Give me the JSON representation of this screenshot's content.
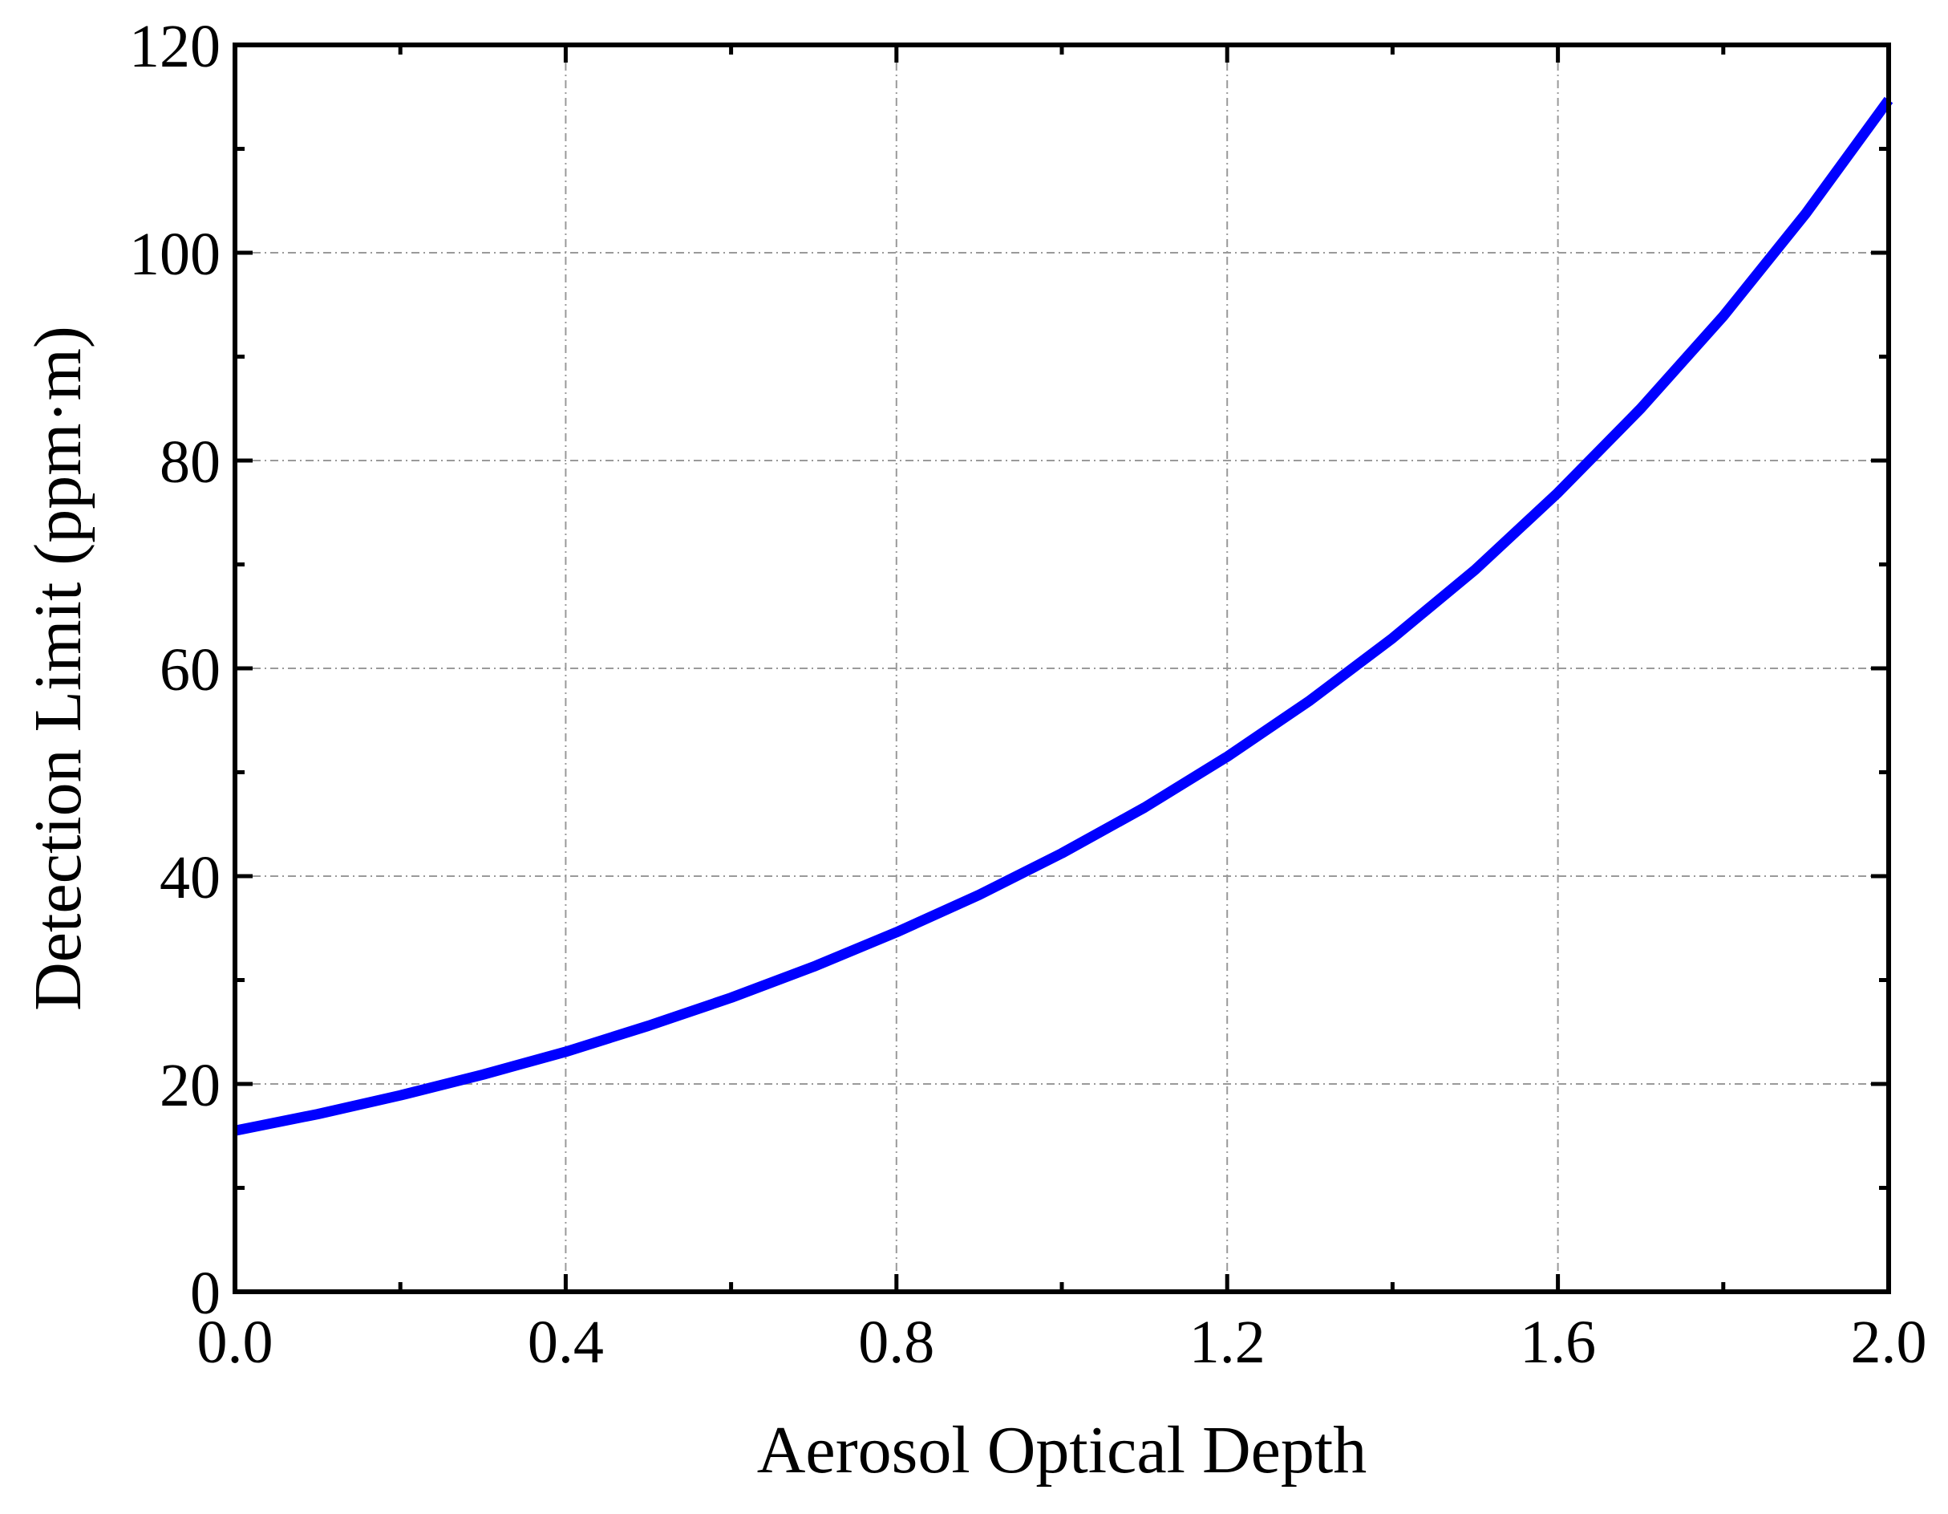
{
  "chart_data": {
    "type": "line",
    "title": "",
    "xlabel": "Aerosol Optical Depth",
    "ylabel": "Detection Limit (ppm·m)",
    "xlim": [
      0.0,
      2.0
    ],
    "ylim": [
      0,
      120
    ],
    "x_ticks": [
      "0.0",
      "0.4",
      "0.8",
      "1.2",
      "1.6",
      "2.0"
    ],
    "y_ticks": [
      "0",
      "20",
      "40",
      "60",
      "80",
      "100",
      "120"
    ],
    "grid": true,
    "legend": "none",
    "series": [
      {
        "color": "#0000ff",
        "x": [
          0.0,
          0.1,
          0.2,
          0.3,
          0.4,
          0.5,
          0.6,
          0.7,
          0.8,
          0.9,
          1.0,
          1.1,
          1.2,
          1.3,
          1.4,
          1.5,
          1.6,
          1.7,
          1.8,
          1.9,
          2.0
        ],
        "y": [
          15.5,
          17.1,
          18.9,
          20.9,
          23.1,
          25.6,
          28.3,
          31.3,
          34.6,
          38.2,
          42.2,
          46.6,
          51.5,
          56.9,
          62.9,
          69.5,
          76.9,
          85.0,
          93.9,
          103.8,
          114.7
        ]
      }
    ],
    "colors": {
      "grid": "#9a9a9a",
      "axes": "#000000",
      "line": "#0000ff"
    }
  }
}
